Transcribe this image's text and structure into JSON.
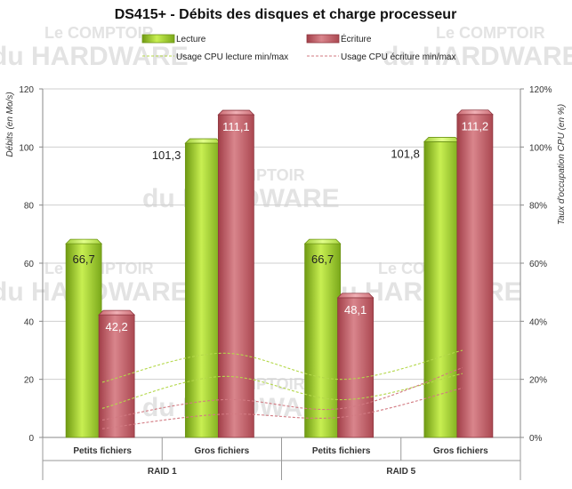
{
  "chart_data": {
    "type": "bar",
    "title": "DS415+ - Débits des disques et charge processeur",
    "ylabel": "Débits (en Mo/s)",
    "y2label": "Taux d'occupation CPU (en %)",
    "ylim": [
      0,
      120
    ],
    "y2lim": [
      0,
      120
    ],
    "yticks": [
      "0",
      "20",
      "40",
      "60",
      "80",
      "100",
      "120"
    ],
    "y2ticks": [
      "0%",
      "20%",
      "40%",
      "60%",
      "80%",
      "100%",
      "120%"
    ],
    "grid": true,
    "legend_position": "top",
    "groups": [
      "RAID 1",
      "RAID 5"
    ],
    "categories": [
      "Petits fichiers",
      "Gros fichiers",
      "Petits fichiers",
      "Gros fichiers"
    ],
    "series": [
      {
        "name": "Lecture",
        "kind": "bar",
        "color": "#9acd32",
        "values": [
          66.7,
          101.3,
          66.7,
          101.8
        ],
        "labels": [
          "66,7",
          "101,3",
          "66,7",
          "101,8"
        ]
      },
      {
        "name": "Écriture",
        "kind": "bar",
        "color": "#c0565f",
        "values": [
          42.2,
          111.1,
          48.1,
          111.2
        ],
        "labels": [
          "42,2",
          "111,1",
          "48,1",
          "111,2"
        ]
      },
      {
        "name": "Usage CPU lecture min/max",
        "kind": "line",
        "style": "dashed",
        "color": "#9acd32",
        "axis": "secondary",
        "min": [
          10,
          21,
          13,
          22
        ],
        "max": [
          19,
          29,
          20,
          30
        ]
      },
      {
        "name": "Usage CPU écriture min/max",
        "kind": "line",
        "style": "dashed",
        "color": "#c0565f",
        "axis": "secondary",
        "min": [
          3,
          8,
          7,
          17
        ],
        "max": [
          6,
          13,
          10,
          24
        ]
      }
    ]
  },
  "watermark": {
    "line1": "Le COMPTOIR",
    "line2": "du HARDWARE"
  }
}
